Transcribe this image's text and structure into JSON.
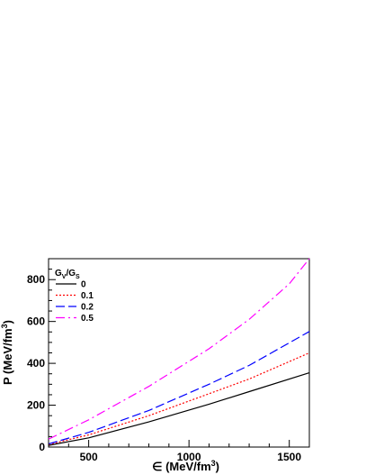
{
  "chart_data": {
    "type": "line",
    "xlabel_main": "∈ (MeV/fm",
    "xlabel_sup": "3",
    "xlabel_tail": ")",
    "ylabel_main": "P (MeV/fm",
    "ylabel_sup": "3",
    "ylabel_tail": ")",
    "xlim": [
      300,
      1600
    ],
    "ylim": [
      0,
      900
    ],
    "xticks": [
      500,
      1000,
      1500
    ],
    "yticks": [
      0,
      200,
      400,
      600,
      800
    ],
    "legend_title": {
      "main": "G",
      "sub1": "V",
      "sep": "/G",
      "sub2": "S"
    },
    "series": [
      {
        "name": "0",
        "color": "#000000",
        "dash": "solid",
        "x": [
          300,
          500,
          800,
          1100,
          1300,
          1600
        ],
        "values": [
          8,
          44,
          120,
          205,
          265,
          355
        ]
      },
      {
        "name": "0.1",
        "color": "#ff0000",
        "dash": "dotted",
        "x": [
          300,
          500,
          800,
          1100,
          1300,
          1600
        ],
        "values": [
          12,
          58,
          150,
          255,
          325,
          450
        ]
      },
      {
        "name": "0.2",
        "color": "#0000ff",
        "dash": "dashed",
        "x": [
          300,
          500,
          800,
          1100,
          1300,
          1600
        ],
        "values": [
          15,
          70,
          175,
          300,
          390,
          552
        ]
      },
      {
        "name": "0.5",
        "color": "#ff00ff",
        "dash": "dashdot",
        "x": [
          300,
          500,
          800,
          1100,
          1300,
          1500,
          1600
        ],
        "values": [
          38,
          130,
          290,
          470,
          610,
          780,
          900
        ]
      }
    ]
  }
}
